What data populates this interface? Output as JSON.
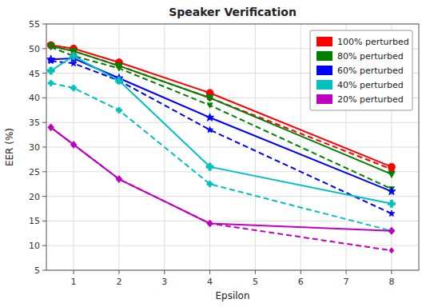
{
  "chart_data": {
    "type": "line",
    "title": "Speaker Verification",
    "xlabel": "Epsilon",
    "ylabel": "EER (%)",
    "x": [
      0.5,
      1,
      2,
      4,
      8
    ],
    "xlim": [
      0.4,
      8.6
    ],
    "ylim": [
      5,
      55
    ],
    "xticks": [
      1,
      2,
      3,
      4,
      5,
      6,
      7,
      8
    ],
    "yticks": [
      5,
      10,
      15,
      20,
      25,
      30,
      35,
      40,
      45,
      50,
      55
    ],
    "grid": true,
    "legend": "upper right",
    "series": [
      {
        "name": "100% perturbed",
        "color": "#ff0000",
        "marker": "circle",
        "line_style": "solid",
        "values": [
          50.7,
          50.0,
          47.2,
          41.0,
          26.0
        ]
      },
      {
        "color": "#ff0000",
        "marker": "circle",
        "line_style": "dashed",
        "values": [
          50.5,
          49.5,
          46.5,
          40.0,
          25.5
        ]
      },
      {
        "name": "80% perturbed",
        "color": "#008000",
        "marker": "triangle-down",
        "line_style": "solid",
        "values": [
          50.5,
          49.5,
          46.5,
          40.0,
          24.5
        ]
      },
      {
        "color": "#008000",
        "marker": "triangle-down",
        "line_style": "dashed",
        "values": [
          50.3,
          48.5,
          46.0,
          38.5,
          21.5
        ]
      },
      {
        "name": "60% perturbed",
        "color": "#0000ff",
        "marker": "star",
        "line_style": "solid",
        "values": [
          47.8,
          48.0,
          44.0,
          36.0,
          21.0
        ]
      },
      {
        "color": "#0000ff",
        "marker": "star",
        "line_style": "dashed",
        "values": [
          47.5,
          47.0,
          43.5,
          33.5,
          16.5
        ]
      },
      {
        "name": "40% perturbed",
        "color": "#00c0c0",
        "marker": "plus",
        "line_style": "solid",
        "values": [
          45.5,
          48.5,
          43.5,
          26.0,
          18.5
        ]
      },
      {
        "color": "#00c0c0",
        "marker": "plus",
        "line_style": "dashed",
        "values": [
          43.0,
          42.0,
          37.5,
          22.5,
          13.0
        ]
      },
      {
        "name": "20% perturbed",
        "color": "#c000c0",
        "marker": "diamond",
        "line_style": "solid",
        "values": [
          34.0,
          30.5,
          23.5,
          14.5,
          13.0
        ]
      },
      {
        "color": "#c000c0",
        "marker": "diamond",
        "line_style": "dashed",
        "values": [
          34.0,
          30.5,
          23.5,
          14.5,
          9.0
        ]
      }
    ]
  }
}
